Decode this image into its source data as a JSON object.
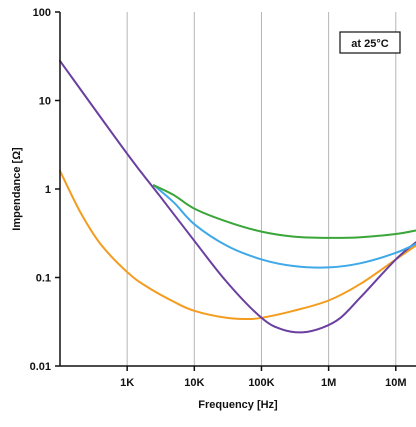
{
  "chart_data": {
    "type": "line",
    "title": "",
    "xlabel": "Frequency [Hz]",
    "ylabel": "Impendance [Ω]",
    "x_scale": "log",
    "y_scale": "log",
    "xlim": [
      100,
      20000000
    ],
    "ylim": [
      0.01,
      100
    ],
    "x_ticks": [
      {
        "value": 1000,
        "label": "1K"
      },
      {
        "value": 10000,
        "label": "10K"
      },
      {
        "value": 100000,
        "label": "100K"
      },
      {
        "value": 1000000,
        "label": "1M"
      },
      {
        "value": 10000000,
        "label": "10M"
      }
    ],
    "y_ticks": [
      {
        "value": 0.01,
        "label": "0.01"
      },
      {
        "value": 0.1,
        "label": "0.1"
      },
      {
        "value": 1,
        "label": "1"
      },
      {
        "value": 10,
        "label": "10"
      },
      {
        "value": 100,
        "label": "100"
      }
    ],
    "grid": "vertical",
    "annotation": "at 25°C",
    "series": [
      {
        "color": "#f39c1f",
        "points": [
          [
            100,
            1.6
          ],
          [
            200,
            0.55
          ],
          [
            400,
            0.24
          ],
          [
            1000,
            0.115
          ],
          [
            2000,
            0.078
          ],
          [
            5000,
            0.053
          ],
          [
            10000,
            0.042
          ],
          [
            30000,
            0.035
          ],
          [
            60000,
            0.034
          ],
          [
            100000,
            0.035
          ],
          [
            300000,
            0.042
          ],
          [
            1000000,
            0.055
          ],
          [
            3000000,
            0.085
          ],
          [
            10000000,
            0.16
          ],
          [
            20000000,
            0.23
          ]
        ]
      },
      {
        "color": "#6a3fa0",
        "points": [
          [
            100,
            28
          ],
          [
            1000,
            2.5
          ],
          [
            3000,
            0.85
          ],
          [
            10000,
            0.26
          ],
          [
            30000,
            0.09
          ],
          [
            100000,
            0.035
          ],
          [
            200000,
            0.026
          ],
          [
            400000,
            0.024
          ],
          [
            800000,
            0.027
          ],
          [
            1500000,
            0.035
          ],
          [
            3000000,
            0.06
          ],
          [
            10000000,
            0.16
          ],
          [
            20000000,
            0.25
          ]
        ]
      },
      {
        "color": "#3fa9e8",
        "points": [
          [
            2500,
            1.1
          ],
          [
            5000,
            0.7
          ],
          [
            10000,
            0.4
          ],
          [
            30000,
            0.23
          ],
          [
            100000,
            0.16
          ],
          [
            300000,
            0.135
          ],
          [
            1000000,
            0.13
          ],
          [
            3000000,
            0.145
          ],
          [
            10000000,
            0.19
          ],
          [
            20000000,
            0.24
          ]
        ]
      },
      {
        "color": "#3aa63a",
        "points": [
          [
            2500,
            1.1
          ],
          [
            5000,
            0.85
          ],
          [
            10000,
            0.6
          ],
          [
            30000,
            0.43
          ],
          [
            100000,
            0.33
          ],
          [
            300000,
            0.29
          ],
          [
            1000000,
            0.28
          ],
          [
            3000000,
            0.285
          ],
          [
            10000000,
            0.31
          ],
          [
            20000000,
            0.34
          ]
        ]
      }
    ]
  }
}
